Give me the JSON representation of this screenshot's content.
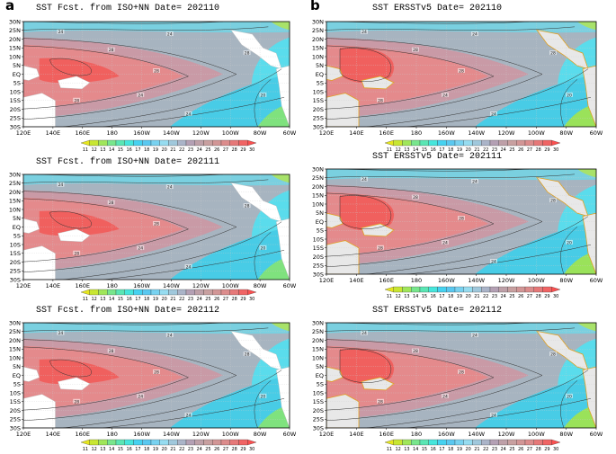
{
  "panel_labels": [
    "a",
    "b"
  ],
  "chart_data": [
    {
      "type": "heatmap",
      "title": "SST Fcst. from ISO+NN Date= 202110",
      "model": "forecast",
      "lat_ticks": [
        "30N",
        "25N",
        "20N",
        "15N",
        "10N",
        "5N",
        "EQ",
        "5S",
        "10S",
        "15S",
        "20S",
        "25S",
        "30S"
      ],
      "lon_ticks": [
        "120E",
        "140E",
        "160E",
        "180",
        "160W",
        "140W",
        "120W",
        "100W",
        "80W",
        "60W"
      ],
      "colorbar_ticks": [
        "11",
        "12",
        "13",
        "14",
        "15",
        "16",
        "17",
        "18",
        "19",
        "20",
        "21",
        "22",
        "23",
        "24",
        "25",
        "26",
        "27",
        "28",
        "29",
        "30"
      ],
      "contour_labels": [
        "24",
        "28",
        "28",
        "24",
        "24",
        "28",
        "28",
        "24",
        "20"
      ]
    },
    {
      "type": "heatmap",
      "title": "SST ERSSTv5 Date= 202110",
      "model": "observed",
      "lat_ticks": [
        "30N",
        "25N",
        "20N",
        "15N",
        "10N",
        "5N",
        "EQ",
        "5S",
        "10S",
        "15S",
        "20S",
        "25S",
        "30S"
      ],
      "lon_ticks": [
        "120E",
        "140E",
        "160E",
        "180",
        "160W",
        "140W",
        "120W",
        "100W",
        "80W",
        "60W"
      ],
      "colorbar_ticks": [
        "11",
        "12",
        "13",
        "14",
        "15",
        "16",
        "17",
        "18",
        "19",
        "20",
        "21",
        "22",
        "23",
        "24",
        "25",
        "26",
        "27",
        "28",
        "29",
        "30"
      ],
      "contour_labels": [
        "24",
        "28",
        "28",
        "24",
        "24",
        "28",
        "28",
        "24",
        "20"
      ]
    },
    {
      "type": "heatmap",
      "title": "SST Fcst. from ISO+NN Date= 202111",
      "model": "forecast",
      "lat_ticks": [
        "30N",
        "25N",
        "20N",
        "15N",
        "10N",
        "5N",
        "EQ",
        "5S",
        "10S",
        "15S",
        "20S",
        "25S",
        "30S"
      ],
      "lon_ticks": [
        "120E",
        "140E",
        "160E",
        "180",
        "160W",
        "140W",
        "120W",
        "100W",
        "80W",
        "60W"
      ],
      "colorbar_ticks": [
        "11",
        "12",
        "13",
        "14",
        "15",
        "16",
        "17",
        "18",
        "19",
        "20",
        "21",
        "22",
        "23",
        "24",
        "25",
        "26",
        "27",
        "28",
        "29",
        "30"
      ],
      "contour_labels": [
        "24",
        "28",
        "28",
        "24",
        "24",
        "28",
        "28",
        "24",
        "20"
      ]
    },
    {
      "type": "heatmap",
      "title": "SST ERSSTv5 Date= 202111",
      "model": "observed",
      "lat_ticks": [
        "30N",
        "25N",
        "20N",
        "15N",
        "10N",
        "5N",
        "EQ",
        "5S",
        "10S",
        "15S",
        "20S",
        "25S",
        "30S"
      ],
      "lon_ticks": [
        "120E",
        "140E",
        "160E",
        "180",
        "160W",
        "140W",
        "120W",
        "100W",
        "80W",
        "60W"
      ],
      "colorbar_ticks": [
        "11",
        "12",
        "13",
        "14",
        "15",
        "16",
        "17",
        "18",
        "19",
        "20",
        "21",
        "22",
        "23",
        "24",
        "25",
        "26",
        "27",
        "28",
        "29",
        "30"
      ],
      "contour_labels": [
        "24",
        "28",
        "28",
        "24",
        "24",
        "28",
        "28",
        "24",
        "20"
      ]
    },
    {
      "type": "heatmap",
      "title": "SST Fcst. from ISO+NN Date= 202112",
      "model": "forecast",
      "lat_ticks": [
        "30N",
        "25N",
        "20N",
        "15N",
        "10N",
        "5N",
        "EQ",
        "5S",
        "10S",
        "15S",
        "20S",
        "25S",
        "30S"
      ],
      "lon_ticks": [
        "120E",
        "140E",
        "160E",
        "180",
        "160W",
        "140W",
        "120W",
        "100W",
        "80W",
        "60W"
      ],
      "colorbar_ticks": [
        "11",
        "12",
        "13",
        "14",
        "15",
        "16",
        "17",
        "18",
        "19",
        "20",
        "21",
        "22",
        "23",
        "24",
        "25",
        "26",
        "27",
        "28",
        "29",
        "30"
      ],
      "contour_labels": [
        "24",
        "28",
        "28",
        "24",
        "24",
        "28",
        "28",
        "24",
        "20"
      ]
    },
    {
      "type": "heatmap",
      "title": "SST ERSSTv5 Date= 202112",
      "model": "observed",
      "lat_ticks": [
        "30N",
        "25N",
        "20N",
        "15N",
        "10N",
        "5N",
        "EQ",
        "5S",
        "10S",
        "15S",
        "20S",
        "25S",
        "30S"
      ],
      "lon_ticks": [
        "120E",
        "140E",
        "160E",
        "180",
        "160W",
        "140W",
        "120W",
        "100W",
        "80W",
        "60W"
      ],
      "colorbar_ticks": [
        "11",
        "12",
        "13",
        "14",
        "15",
        "16",
        "17",
        "18",
        "19",
        "20",
        "21",
        "22",
        "23",
        "24",
        "25",
        "26",
        "27",
        "28",
        "29",
        "30"
      ],
      "contour_labels": [
        "24",
        "28",
        "28",
        "24",
        "24",
        "28",
        "28",
        "24",
        "20"
      ]
    }
  ],
  "colorbar_colors": [
    "#e6e61e",
    "#c8e632",
    "#a0e65a",
    "#78e68c",
    "#5ae6b4",
    "#46e6dc",
    "#46d2f0",
    "#5ac8f0",
    "#78d2f0",
    "#96dcf0",
    "#a0c8dc",
    "#aab4c8",
    "#b4a0b4",
    "#bea0a8",
    "#c8a0a0",
    "#d29696",
    "#dc8c8c",
    "#e67878",
    "#f06464",
    "#fa5050"
  ]
}
